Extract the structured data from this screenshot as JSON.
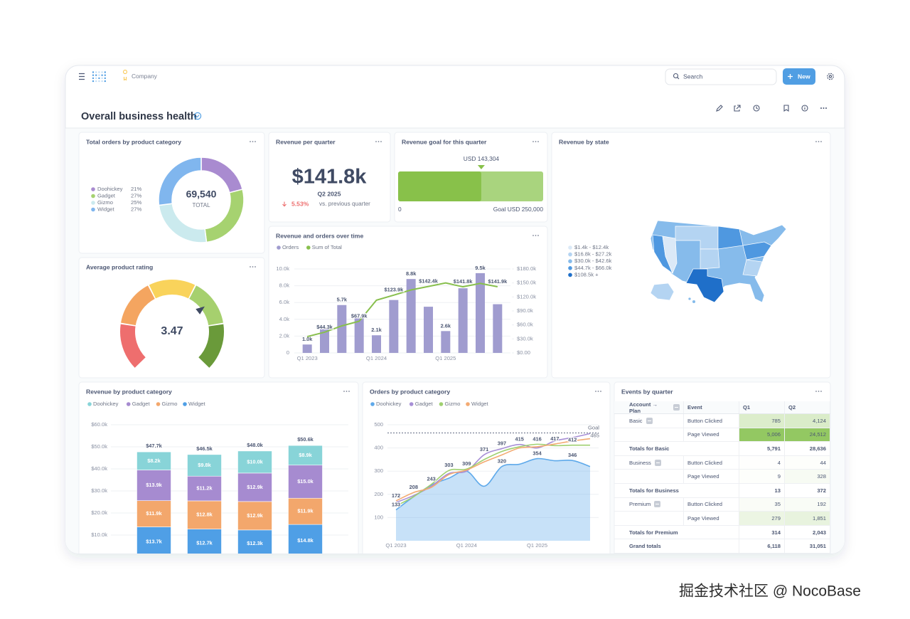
{
  "header": {
    "breadcrumb": "Company",
    "search": "Search",
    "new_button": "New"
  },
  "dashboard": {
    "title": "Overall business health"
  },
  "watermark": "掘金技术社区 @ NocoBase",
  "kpi": {
    "title": "Revenue per quarter",
    "value": "$141.8k",
    "period": "Q2 2025",
    "change": "5.53%",
    "comparison": "vs. previous quarter"
  },
  "map": {
    "title": "Revenue by state",
    "legend": [
      {
        "label": "$1.4k - $12.4k",
        "color": "#dbe9f7"
      },
      {
        "label": "$16.8k - $27.2k",
        "color": "#b4d4f2"
      },
      {
        "label": "$30.0k - $42.6k",
        "color": "#86bbeb"
      },
      {
        "label": "$44.7k - $66.0k",
        "color": "#4f98e0"
      },
      {
        "label": "$108.5k +",
        "color": "#1f6fc9"
      }
    ]
  },
  "chart_data": [
    {
      "type": "pie",
      "title": "Total orders by product category",
      "categories": [
        "Doohickey",
        "Gadget",
        "Gizmo",
        "Widget"
      ],
      "values": [
        21,
        27,
        25,
        27
      ],
      "value_labels": [
        "21%",
        "27%",
        "25%",
        "27%"
      ],
      "colors": [
        "#a98bd0",
        "#a6d270",
        "#cbeaee",
        "#80b6ee"
      ],
      "center_value": "69,540",
      "center_label": "TOTAL"
    },
    {
      "type": "progress",
      "title": "Revenue goal for this quarter",
      "value": 143304,
      "value_label": "USD 143,304",
      "goal": 250000,
      "goal_label": "Goal USD 250,000",
      "xlim": [
        0,
        250000
      ],
      "color": "#88c14a",
      "track_color": "#a9d47e"
    },
    {
      "type": "gauge",
      "title": "Average product rating",
      "value": 3.47,
      "range": [
        0,
        5
      ],
      "segments": [
        {
          "to": 1,
          "color": "#ee6e6e"
        },
        {
          "to": 2,
          "color": "#f4a560"
        },
        {
          "to": 3,
          "color": "#f9d35b"
        },
        {
          "to": 4,
          "color": "#a6d06e"
        },
        {
          "to": 5,
          "color": "#6a9a3a"
        }
      ]
    },
    {
      "type": "combo",
      "title": "Revenue and orders over time",
      "categories": [
        "Q1 2023",
        null,
        null,
        null,
        "Q1 2024",
        null,
        null,
        null,
        "Q1 2025",
        null,
        null,
        null
      ],
      "series": [
        {
          "name": "Orders",
          "type": "bar",
          "color": "#a09ccf",
          "values": [
            1000,
            3000,
            5700,
            4200,
            2100,
            6300,
            8800,
            5500,
            2600,
            7700,
            9500,
            5800
          ],
          "value_labels": [
            "1.0k",
            null,
            "5.7k",
            null,
            "2.1k",
            null,
            "8.8k",
            null,
            "2.6k",
            null,
            "9.5k",
            null
          ]
        },
        {
          "name": "Sum of Total",
          "type": "line",
          "axis": "y2",
          "color": "#88bf4d",
          "values": [
            35000,
            44300,
            58000,
            67900,
            113000,
            123900,
            135000,
            142400,
            150000,
            141800,
            149000,
            141900
          ],
          "value_labels": [
            null,
            "$44.3k",
            null,
            "$67.9k",
            null,
            "$123.9k",
            null,
            "$142.4k",
            null,
            "$141.8k",
            null,
            "$141.9k"
          ]
        }
      ],
      "ylim": [
        0,
        10000
      ],
      "yticks": [
        0,
        {
          "value": 2000,
          "label": "2.0k"
        },
        {
          "value": 4000,
          "label": "4.0k"
        },
        {
          "value": 6000,
          "label": "6.0k"
        },
        {
          "value": 8000,
          "label": "8.0k"
        },
        {
          "value": 10000,
          "label": "10.0k"
        }
      ],
      "y2lim": [
        0,
        180000
      ],
      "y2ticks": [
        {
          "value": 0,
          "label": "$0.00"
        },
        {
          "value": 30000,
          "label": "$30.0k"
        },
        {
          "value": 60000,
          "label": "$60.0k"
        },
        {
          "value": 90000,
          "label": "$90.0k"
        },
        {
          "value": 120000,
          "label": "$120.0k"
        },
        {
          "value": 150000,
          "label": "$150.0k"
        },
        {
          "value": 180000,
          "label": "$180.0k"
        }
      ],
      "grid": true
    },
    {
      "type": "stacked_bar",
      "title": "Revenue by product category",
      "categories": [
        null,
        null,
        null,
        null
      ],
      "series": [
        {
          "name": "Doohickey",
          "color": "#88d4d8",
          "values": [
            8200,
            9800,
            10000,
            8900
          ],
          "value_labels": [
            "$8.2k",
            "$9.8k",
            "$10.0k",
            "$8.9k"
          ]
        },
        {
          "name": "Gadget",
          "color": "#a68bd0",
          "values": [
            13900,
            11200,
            12900,
            15000
          ],
          "value_labels": [
            "$13.9k",
            "$11.2k",
            "$12.9k",
            "$15.0k"
          ]
        },
        {
          "name": "Gizmo",
          "color": "#f3a76c",
          "values": [
            11900,
            12800,
            12900,
            11900
          ],
          "value_labels": [
            "$11.9k",
            "$12.8k",
            "$12.9k",
            "$11.9k"
          ]
        },
        {
          "name": "Widget",
          "color": "#4f9fe6",
          "values": [
            13700,
            12700,
            12300,
            14800
          ],
          "value_labels": [
            "$13.7k",
            "$12.7k",
            "$12.3k",
            "$14.8k"
          ]
        }
      ],
      "totals": [
        47700,
        46500,
        48000,
        50600
      ],
      "total_labels": [
        "$47.7k",
        "$46.5k",
        "$48.0k",
        "$50.6k"
      ],
      "ylim": [
        0,
        60000
      ],
      "yticks": [
        {
          "value": 10000,
          "label": "$10.0k"
        },
        {
          "value": 20000,
          "label": "$20.0k"
        },
        {
          "value": 30000,
          "label": "$30.0k"
        },
        {
          "value": 40000,
          "label": "$40.0k"
        },
        {
          "value": 50000,
          "label": "$50.0k"
        },
        {
          "value": 60000,
          "label": "$60.0k"
        }
      ],
      "grid": true
    },
    {
      "type": "area",
      "title": "Orders by product category",
      "categories": [
        "Q1 2023",
        null,
        null,
        null,
        "Q1 2024",
        null,
        null,
        null,
        "Q1 2025",
        null,
        null,
        null
      ],
      "series": [
        {
          "name": "Doohickey",
          "type": "area",
          "color": "#5ea9ea",
          "values": [
            133,
            190,
            240,
            270,
            300,
            235,
            320,
            330,
            354,
            345,
            346,
            320
          ],
          "value_labels": [
            "133",
            null,
            null,
            null,
            null,
            null,
            "320",
            null,
            "354",
            null,
            "346",
            null
          ]
        },
        {
          "name": "Gadget",
          "type": "line",
          "color": "#a78fd6",
          "values": [
            165,
            195,
            235,
            290,
            300,
            371,
            397,
            415,
            400,
            430,
            445,
            462
          ],
          "value_labels": [
            null,
            null,
            null,
            null,
            null,
            "371",
            "397",
            "415",
            null,
            null,
            null,
            null
          ]
        },
        {
          "name": "Gizmo",
          "type": "line",
          "color": "#9fd070",
          "values": [
            150,
            190,
            243,
            303,
            309,
            350,
            385,
            405,
            416,
            410,
            412,
            412
          ],
          "value_labels": [
            null,
            null,
            "243",
            "303",
            "309",
            null,
            null,
            null,
            "416",
            null,
            "412",
            null
          ]
        },
        {
          "name": "Widget",
          "type": "line",
          "color": "#f3aa72",
          "values": [
            172,
            208,
            230,
            285,
            305,
            340,
            370,
            400,
            405,
            417,
            430,
            440
          ],
          "value_labels": [
            "172",
            "208",
            null,
            null,
            null,
            null,
            null,
            null,
            null,
            "417",
            null,
            null
          ]
        }
      ],
      "goal": {
        "name": "Goal",
        "value": 465
      },
      "ylim": [
        0,
        500
      ],
      "yticks": [
        100,
        200,
        300,
        400,
        500
      ],
      "grid": true
    }
  ],
  "table": {
    "title": "Events by quarter",
    "headers": [
      "Account → Plan",
      "Event",
      "Q1",
      "Q2"
    ],
    "rows": [
      {
        "group": "Basic",
        "event": "Button Clicked",
        "q1": "785",
        "q2": "4,124"
      },
      {
        "event": "Page Viewed",
        "q1": "5,006",
        "q2": "24,512"
      },
      {
        "total": "Totals for Basic",
        "q1": "5,791",
        "q2": "28,636"
      },
      {
        "group": "Business",
        "event": "Button Clicked",
        "q1": "4",
        "q2": "44"
      },
      {
        "event": "Page Viewed",
        "q1": "9",
        "q2": "328"
      },
      {
        "total": "Totals for Business",
        "q1": "13",
        "q2": "372"
      },
      {
        "group": "Premium",
        "event": "Button Clicked",
        "q1": "35",
        "q2": "192"
      },
      {
        "event": "Page Viewed",
        "q1": "279",
        "q2": "1,851"
      },
      {
        "total": "Totals for Premium",
        "q1": "314",
        "q2": "2,043"
      },
      {
        "total": "Grand totals",
        "q1": "6,118",
        "q2": "31,051"
      }
    ]
  }
}
